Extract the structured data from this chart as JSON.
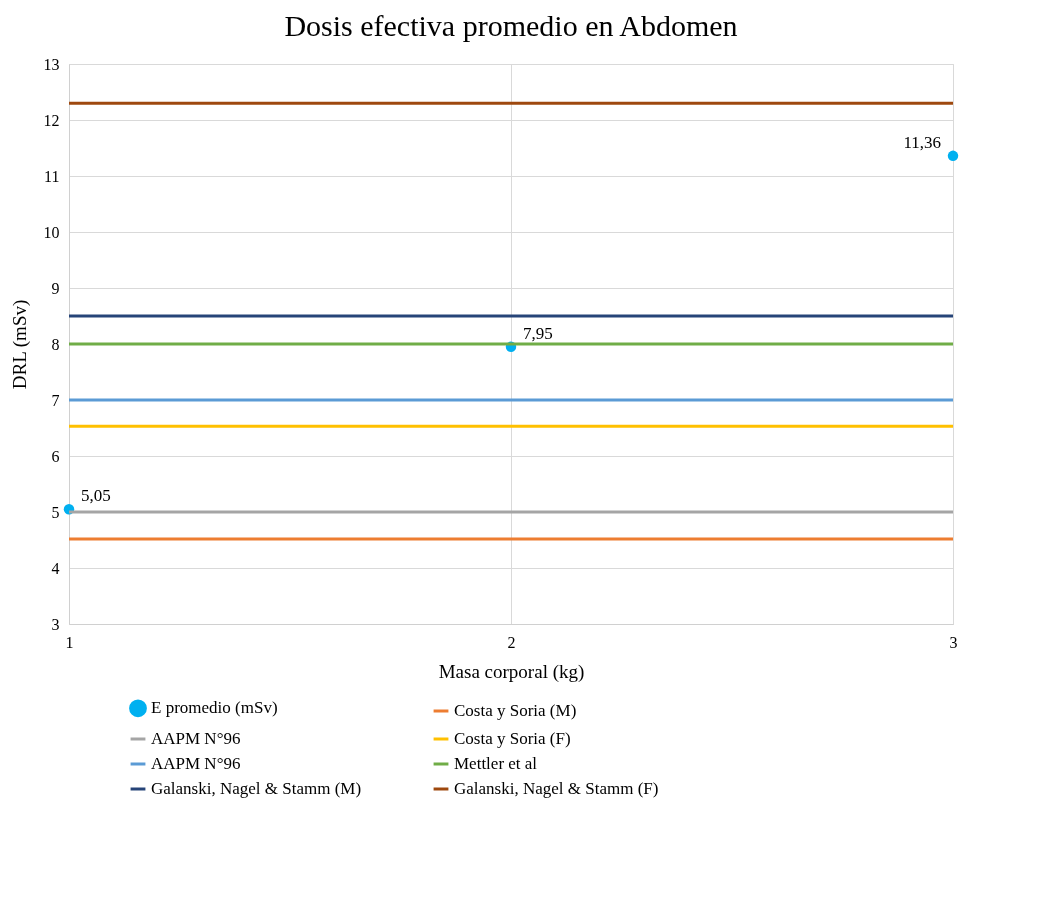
{
  "chart_data": {
    "type": "line",
    "title": "Dosis efectiva promedio en Abdomen",
    "xlabel": "Masa corporal (kg)",
    "ylabel": "DRL (mSv)",
    "xlim": [
      1,
      3
    ],
    "xticks": [
      1,
      2,
      3
    ],
    "ylim": [
      3,
      13
    ],
    "yticks": [
      3,
      4,
      5,
      6,
      7,
      8,
      9,
      10,
      11,
      12,
      13
    ],
    "grid": true,
    "legend": "bottom",
    "series": [
      {
        "name": "E promedio (mSv)",
        "type": "scatter",
        "marker": "circle",
        "color": "#00b0f0",
        "x": [
          1,
          2,
          3
        ],
        "values": [
          5.05,
          7.95,
          11.36
        ],
        "value_labels": [
          "5,05",
          "7,95",
          "11,36"
        ]
      },
      {
        "name": "Costa y Soria (M)",
        "color": "#ed7d31",
        "x": [
          1,
          3
        ],
        "values": [
          4.52,
          4.52
        ]
      },
      {
        "name": "AAPM N°96",
        "color": "#a5a5a5",
        "x": [
          1,
          3
        ],
        "values": [
          5,
          5
        ]
      },
      {
        "name": "Costa y Soria (F)",
        "color": "#ffc000",
        "x": [
          1,
          3
        ],
        "values": [
          6.53,
          6.53
        ]
      },
      {
        "name": "AAPM N°96",
        "color": "#5b9bd5",
        "x": [
          1,
          3
        ],
        "values": [
          7,
          7
        ]
      },
      {
        "name": "Mettler et al",
        "color": "#70ad47",
        "x": [
          1,
          3
        ],
        "values": [
          8,
          8
        ]
      },
      {
        "name": "Galanski, Nagel & Stamm (M)",
        "color": "#264478",
        "x": [
          1,
          3
        ],
        "values": [
          8.5,
          8.5
        ]
      },
      {
        "name": "Galanski, Nagel & Stamm (F)",
        "color": "#9e480e",
        "x": [
          1,
          3
        ],
        "values": [
          12.3,
          12.3
        ]
      }
    ]
  }
}
